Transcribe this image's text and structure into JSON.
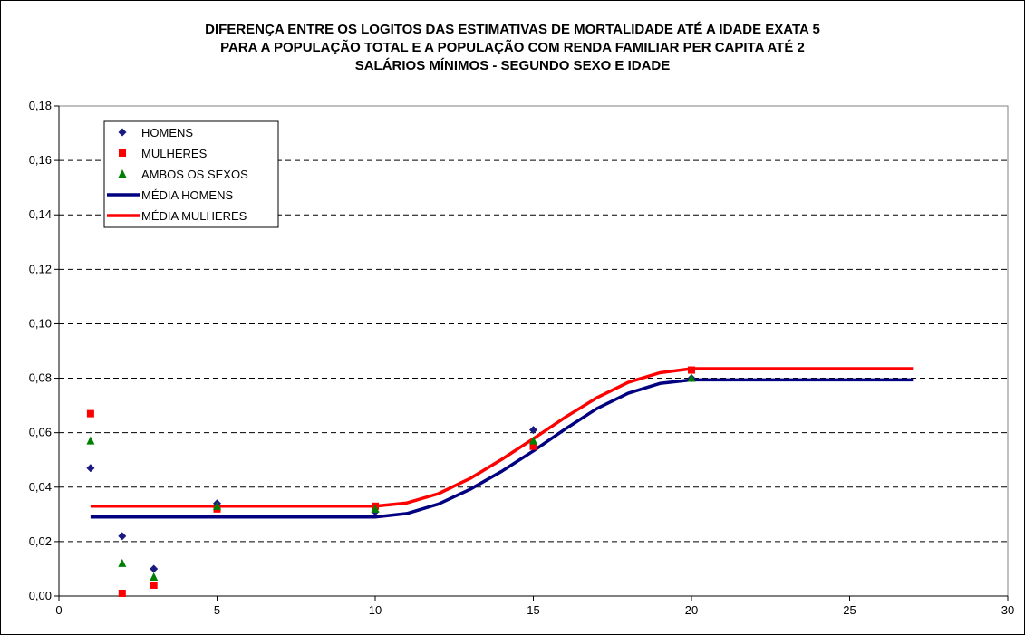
{
  "chart_data": {
    "type": "scatter",
    "title_lines": [
      "DIFERENÇA ENTRE OS LOGITOS DAS ESTIMATIVAS DE MORTALIDADE ATÉ A IDADE EXATA 5",
      "PARA A POPULAÇÃO TOTAL E A POPULAÇÃO COM RENDA FAMILIAR PER CAPITA ATÉ 2",
      "SALÁRIOS MÍNIMOS - SEGUNDO SEXO E IDADE"
    ],
    "xlim": [
      0,
      30
    ],
    "ylim": [
      0,
      0.18
    ],
    "x_ticks": [
      0,
      5,
      10,
      15,
      20,
      25,
      30
    ],
    "x_tick_labels": [
      "0",
      "5",
      "10",
      "15",
      "20",
      "25",
      "30"
    ],
    "y_ticks": [
      0,
      0.02,
      0.04,
      0.06,
      0.08,
      0.1,
      0.12,
      0.14,
      0.16,
      0.18
    ],
    "y_tick_labels": [
      "0,00",
      "0,02",
      "0,04",
      "0,06",
      "0,08",
      "0,10",
      "0,12",
      "0,14",
      "0,16",
      "0,18"
    ],
    "grid": "horizontal dashed",
    "legend_position": "top-left",
    "series": [
      {
        "name": "HOMENS",
        "kind": "points",
        "marker": "diamond",
        "color": "#1a1a80",
        "x": [
          1,
          2,
          3,
          5,
          10,
          15,
          20
        ],
        "y": [
          0.047,
          0.022,
          0.01,
          0.034,
          0.031,
          0.061,
          0.08
        ]
      },
      {
        "name": "MULHERES",
        "kind": "points",
        "marker": "square",
        "color": "#ff0000",
        "x": [
          1,
          2,
          3,
          5,
          10,
          15,
          20
        ],
        "y": [
          0.067,
          0.001,
          0.004,
          0.032,
          0.033,
          0.055,
          0.083
        ]
      },
      {
        "name": "AMBOS OS SEXOS",
        "kind": "points",
        "marker": "triangle",
        "color": "#008000",
        "x": [
          1,
          2,
          3,
          5,
          10,
          15,
          20
        ],
        "y": [
          0.057,
          0.012,
          0.007,
          0.033,
          0.032,
          0.057,
          0.08
        ]
      },
      {
        "name": "MÉDIA HOMENS",
        "kind": "line",
        "color": "#000080",
        "x": [
          1,
          2,
          3,
          4,
          5,
          6,
          7,
          8,
          9,
          10,
          11,
          12,
          13,
          14,
          15,
          16,
          17,
          18,
          19,
          20,
          21,
          22,
          23,
          24,
          25,
          26,
          27
        ],
        "y": [
          0.029,
          0.029,
          0.029,
          0.029,
          0.029,
          0.029,
          0.029,
          0.029,
          0.029,
          0.029,
          0.0303,
          0.0338,
          0.0392,
          0.0458,
          0.0533,
          0.0613,
          0.0688,
          0.0745,
          0.0781,
          0.0794,
          0.0794,
          0.0794,
          0.0794,
          0.0794,
          0.0794,
          0.0794,
          0.0794
        ]
      },
      {
        "name": "MÉDIA MULHERES",
        "kind": "line",
        "color": "#ff0000",
        "x": [
          1,
          2,
          3,
          4,
          5,
          6,
          7,
          8,
          9,
          10,
          11,
          12,
          13,
          14,
          15,
          16,
          17,
          18,
          19,
          20,
          21,
          22,
          23,
          24,
          25,
          26,
          27
        ],
        "y": [
          0.033,
          0.033,
          0.033,
          0.033,
          0.033,
          0.033,
          0.033,
          0.033,
          0.033,
          0.033,
          0.0342,
          0.0376,
          0.0432,
          0.0502,
          0.0578,
          0.0656,
          0.0728,
          0.0785,
          0.082,
          0.0835,
          0.0835,
          0.0835,
          0.0835,
          0.0835,
          0.0835,
          0.0835,
          0.0835
        ]
      }
    ]
  }
}
